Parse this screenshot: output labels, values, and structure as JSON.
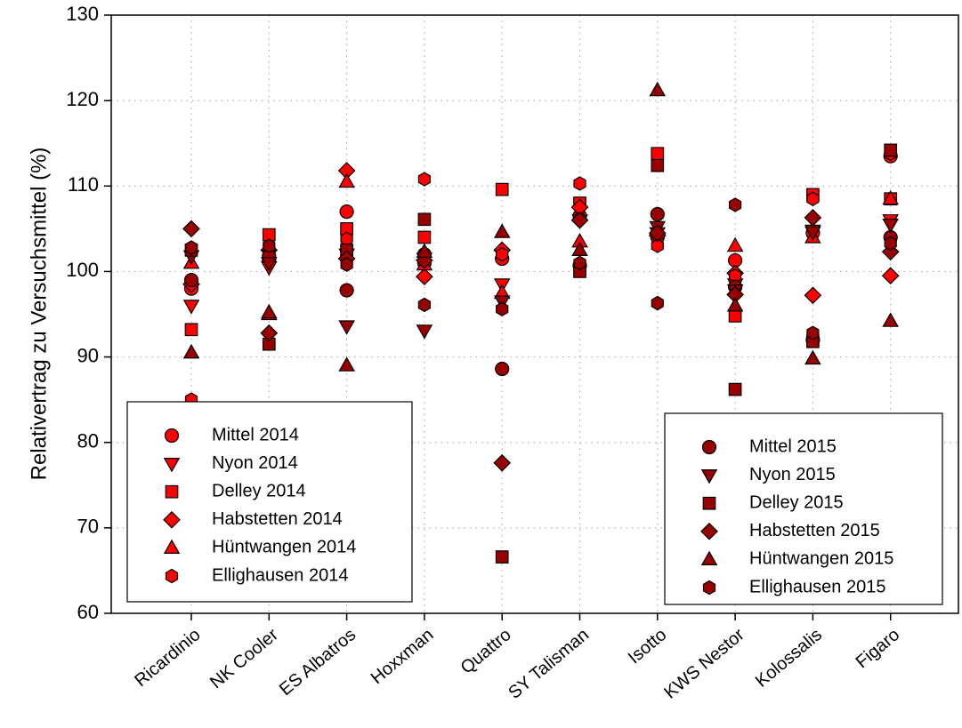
{
  "chart_data": {
    "type": "scatter",
    "y_label": "Relativertrag zu Versuchsmittel (%)",
    "categories": [
      "Ricardinio",
      "NK Cooler",
      "ES Albatros",
      "Hoxxman",
      "Quattro",
      "SY Talisman",
      "Isotto",
      "KWS Nestor",
      "Kolossalis",
      "Figaro"
    ],
    "ylim": [
      60,
      130
    ],
    "yticks": [
      60,
      70,
      80,
      90,
      100,
      110,
      120,
      130
    ],
    "grid": true,
    "series": [
      {
        "name": "Mittel 2014",
        "color": "#ff0000",
        "marker": "circle",
        "legend": "lower left",
        "values": [
          98.0,
          101.3,
          107.0,
          101.0,
          101.5,
          106.5,
          104.0,
          101.3,
          104.5,
          113.5
        ]
      },
      {
        "name": "Nyon 2014",
        "color": "#ff0000",
        "marker": "triangle-down",
        "legend": "lower left",
        "values": [
          96.0,
          100.5,
          102.0,
          101.5,
          98.5,
          107.0,
          104.5,
          98.5,
          104.8,
          106.0
        ]
      },
      {
        "name": "Delley 2014",
        "color": "#ff0000",
        "marker": "square",
        "legend": "lower left",
        "values": [
          93.2,
          104.3,
          105.0,
          104.0,
          109.6,
          108.0,
          113.8,
          94.8,
          109.0,
          108.5
        ]
      },
      {
        "name": "Habstetten 2014",
        "color": "#ff0000",
        "marker": "diamond",
        "legend": "lower left",
        "values": [
          98.5,
          102.5,
          111.8,
          99.4,
          102.5,
          107.5,
          104.2,
          99.8,
          97.2,
          99.5
        ]
      },
      {
        "name": "Hüntwangen 2014",
        "color": "#ff0000",
        "marker": "triangle-up",
        "legend": "lower left",
        "values": [
          101.0,
          95.0,
          110.5,
          100.8,
          97.5,
          103.5,
          105.0,
          103.0,
          104.0,
          108.5
        ]
      },
      {
        "name": "Ellighausen 2014",
        "color": "#ff0000",
        "marker": "hexagon",
        "legend": "lower left",
        "values": [
          85.0,
          102.3,
          103.8,
          110.8,
          102.0,
          110.3,
          103.0,
          99.5,
          108.5,
          113.8
        ]
      },
      {
        "name": "Mittel 2015",
        "color": "#990000",
        "marker": "circle",
        "legend": "lower right",
        "values": [
          99.0,
          101.8,
          97.8,
          102.0,
          88.6,
          100.7,
          106.7,
          98.2,
          92.0,
          104.0
        ]
      },
      {
        "name": "Nyon 2015",
        "color": "#990000",
        "marker": "triangle-down",
        "legend": "lower right",
        "values": [
          101.8,
          101.0,
          93.6,
          93.1,
          96.5,
          106.0,
          105.2,
          97.8,
          104.6,
          105.5
        ]
      },
      {
        "name": "Delley 2015",
        "color": "#990000",
        "marker": "square",
        "legend": "lower right",
        "values": [
          102.5,
          91.5,
          102.5,
          106.1,
          66.6,
          100.0,
          112.4,
          86.2,
          91.8,
          114.2
        ]
      },
      {
        "name": "Habstetten 2015",
        "color": "#990000",
        "marker": "diamond",
        "legend": "lower right",
        "values": [
          105.0,
          92.8,
          101.5,
          101.3,
          77.6,
          106.0,
          104.5,
          97.3,
          106.3,
          102.3
        ]
      },
      {
        "name": "Hüntwangen 2015",
        "color": "#990000",
        "marker": "triangle-up",
        "legend": "lower right",
        "values": [
          90.5,
          95.2,
          89.0,
          102.3,
          104.6,
          102.5,
          121.2,
          96.0,
          89.8,
          94.2
        ]
      },
      {
        "name": "Ellighausen 2015",
        "color": "#990000",
        "marker": "hexagon",
        "legend": "lower right",
        "values": [
          102.8,
          103.0,
          100.8,
          96.1,
          95.6,
          101.0,
          96.3,
          107.8,
          92.8,
          103.3
        ]
      }
    ]
  }
}
